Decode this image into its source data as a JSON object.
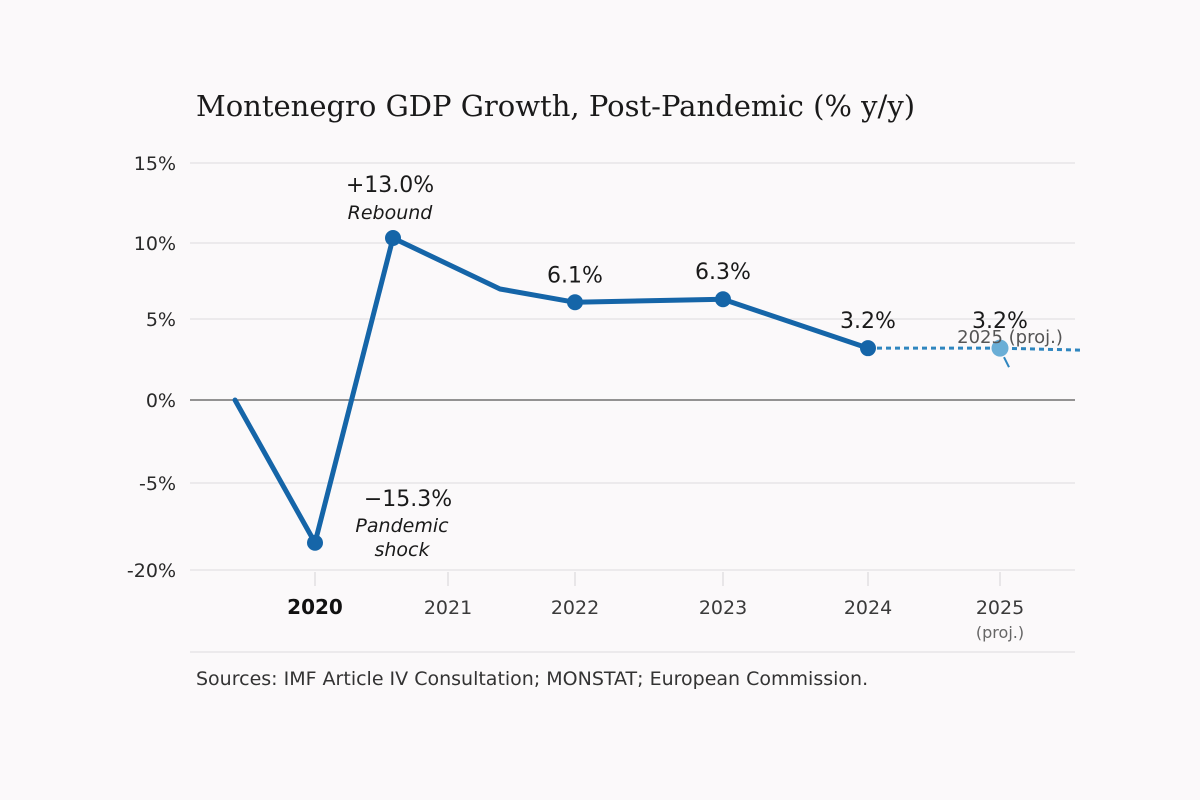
{
  "chart_data": {
    "type": "line",
    "title": "Montenegro GDP Growth, Post-Pandemic (% y/y)",
    "xlabel": "",
    "ylabel": "",
    "y_ticks": [
      "15%",
      "10%",
      "5%",
      "0%",
      "-5%",
      "-20%"
    ],
    "y_tick_values": [
      15,
      10,
      5,
      0,
      -5,
      -20
    ],
    "x_ticks": [
      {
        "label": "2020",
        "sub": "",
        "bold": true
      },
      {
        "label": "2021",
        "sub": "",
        "bold": false
      },
      {
        "label": "2022",
        "sub": "",
        "bold": false
      },
      {
        "label": "2023",
        "sub": "",
        "bold": false
      },
      {
        "label": "2024",
        "sub": "",
        "bold": false
      },
      {
        "label": "2025",
        "sub": "(proj.)",
        "bold": false
      }
    ],
    "grid": true,
    "series": [
      {
        "name": "GDP growth (% y/y)",
        "color": "#1565a8",
        "projection_color": "#6aaed6",
        "points": [
          {
            "x": "2020",
            "value": -15.3,
            "label": "−15.3%",
            "annotation": [
              "Pandemic",
              "shock"
            ],
            "marker": true
          },
          {
            "x": "2021",
            "value": 13.0,
            "label": "+13.0%",
            "annotation": [
              "Rebound"
            ],
            "marker": true
          },
          {
            "x": "2022",
            "value": 6.1,
            "label": "6.1%",
            "annotation": [],
            "marker": true
          },
          {
            "x": "2023",
            "value": 6.3,
            "label": "6.3%",
            "annotation": [],
            "marker": true
          },
          {
            "x": "2024",
            "value": 3.2,
            "label": "3.2%",
            "annotation": [],
            "marker": true
          },
          {
            "x": "2025",
            "value": 3.2,
            "label": "3.2%",
            "annotation": [
              "2025 (proj.)"
            ],
            "marker": true,
            "projected": true
          }
        ]
      }
    ],
    "source": "Sources: IMF Article IV Consultation; MONSTAT; European Commission."
  }
}
